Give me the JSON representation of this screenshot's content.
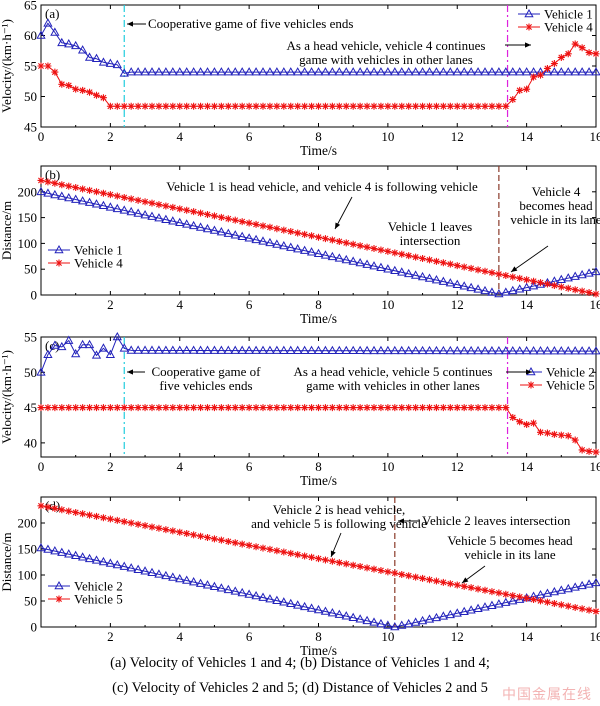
{
  "caption": {
    "line1": "(a) Velocity of Vehicles 1 and  4; (b) Distance of Vehicles 1 and 4;",
    "line2": "(c) Velocity of Vehicles 2 and 5; (d) Distance of Vehicles 2 and 5"
  },
  "watermark": "中国金属在线",
  "colors": {
    "blue": "#2222bb",
    "red": "#ee1111",
    "cyan": "#22ccdd",
    "magenta": "#dd22dd",
    "brown": "#8b3a2a"
  },
  "chart_data": [
    {
      "id": "a",
      "type": "line",
      "panel_label": "(a)",
      "xlabel": "Time/s",
      "ylabel": "Velocity/(km·h⁻¹)",
      "xlim": [
        0,
        16
      ],
      "ylim": [
        45,
        65
      ],
      "xticks": [
        0,
        2,
        4,
        6,
        8,
        10,
        12,
        14,
        16
      ],
      "yticks": [
        45,
        50,
        55,
        60,
        65
      ],
      "legend_position": "top-right",
      "series": [
        {
          "name": "Vehicle 1",
          "color": "#2222bb",
          "marker": "triangle",
          "x": [
            0,
            0.2,
            0.4,
            0.6,
            0.8,
            1.0,
            1.2,
            1.4,
            1.6,
            1.8,
            2.0,
            2.2,
            2.4,
            2.6,
            16
          ],
          "y": [
            60,
            62,
            60.5,
            58.8,
            58.6,
            58.3,
            57.6,
            56.4,
            56.2,
            55.6,
            55.4,
            55.2,
            53.8,
            54,
            54
          ]
        },
        {
          "name": "Vehicle 4",
          "color": "#ee1111",
          "marker": "star",
          "x": [
            0,
            0.2,
            0.4,
            0.6,
            0.8,
            1.0,
            1.2,
            1.4,
            1.6,
            1.8,
            2.0,
            2.2,
            13.4,
            13.6,
            13.8,
            14.0,
            14.2,
            14.4,
            14.6,
            14.8,
            15.0,
            15.2,
            15.4,
            15.6,
            15.8,
            16.0
          ],
          "y": [
            55,
            55,
            54,
            52,
            51.8,
            51.2,
            51,
            50.7,
            50.2,
            49.8,
            48.4,
            48.4,
            48.4,
            49.5,
            51,
            51.2,
            53.2,
            53.5,
            54.6,
            55.4,
            56.4,
            57,
            58.6,
            58,
            57.2,
            57
          ]
        }
      ],
      "vlines": [
        {
          "x": 2.4,
          "color": "#22ccdd",
          "dash": "dashdot"
        },
        {
          "x": 13.45,
          "color": "#dd22dd",
          "dash": "dashdot"
        }
      ],
      "annotations": [
        {
          "id": "coop_end",
          "lines": [
            "Cooperative game of five vehicles ends"
          ]
        },
        {
          "id": "head4",
          "lines": [
            "As a head vehicle, vehicle 4 continues",
            "game with vehicles in other lanes"
          ]
        }
      ]
    },
    {
      "id": "b",
      "type": "line",
      "panel_label": "(b)",
      "xlabel": "Time/s",
      "ylabel": "Distance/m",
      "xlim": [
        0,
        16
      ],
      "ylim": [
        0,
        250
      ],
      "xticks": [
        2,
        4,
        6,
        8,
        10,
        12,
        14,
        16
      ],
      "yticks": [
        0,
        50,
        100,
        150,
        200
      ],
      "legend_position": "middle-left",
      "series": [
        {
          "name": "Vehicle 1",
          "color": "#2222bb",
          "marker": "triangle",
          "x": [
            0,
            13.2,
            16
          ],
          "y": [
            200,
            2,
            45
          ]
        },
        {
          "name": "Vehicle 4",
          "color": "#ee1111",
          "marker": "star",
          "x": [
            0,
            16
          ],
          "y": [
            222,
            2
          ]
        }
      ],
      "vlines": [
        {
          "x": 13.2,
          "color": "#8b3a2a",
          "dash": "dash"
        }
      ],
      "annotations": [
        {
          "id": "head1",
          "lines": [
            "Vehicle 1 is head vehicle, and vehicle 4 is following vehicle"
          ]
        },
        {
          "id": "leave1",
          "lines": [
            "Vehicle 1 leaves",
            "intersection"
          ]
        },
        {
          "id": "becomes4",
          "lines": [
            "Vehicle 4",
            "becomes head",
            "vehicle in its lane"
          ]
        }
      ]
    },
    {
      "id": "c",
      "type": "line",
      "panel_label": "(c)",
      "xlabel": "Time/s",
      "ylabel": "Velocity/(km·h⁻¹)",
      "xlim": [
        0,
        16
      ],
      "ylim": [
        38,
        55
      ],
      "xticks": [
        0,
        2,
        4,
        6,
        8,
        10,
        12,
        14,
        16
      ],
      "yticks": [
        40,
        45,
        50,
        55
      ],
      "legend_position": "middle-right",
      "series": [
        {
          "name": "Vehicle 2",
          "color": "#2222bb",
          "marker": "triangle",
          "x": [
            0,
            0.2,
            0.4,
            0.6,
            0.8,
            1.0,
            1.2,
            1.4,
            1.6,
            1.8,
            2.0,
            2.2,
            2.4,
            2.6,
            16
          ],
          "y": [
            50,
            52.5,
            53.8,
            53.6,
            54.5,
            52.6,
            53.9,
            53.9,
            52.4,
            53.4,
            52.5,
            55,
            53.4,
            53.1,
            53
          ]
        },
        {
          "name": "Vehicle 5",
          "color": "#ee1111",
          "marker": "star",
          "x": [
            0,
            13.4,
            13.6,
            13.8,
            14.0,
            14.2,
            14.4,
            14.6,
            14.8,
            15.0,
            15.2,
            15.4,
            15.6,
            15.8,
            16.0
          ],
          "y": [
            45,
            45,
            43.6,
            43,
            42.6,
            42.8,
            41.5,
            41.4,
            41.2,
            41.1,
            41,
            40.4,
            39,
            38.8,
            38.7
          ]
        }
      ],
      "vlines": [
        {
          "x": 2.4,
          "color": "#22ccdd",
          "dash": "dashdot"
        },
        {
          "x": 13.45,
          "color": "#dd22dd",
          "dash": "dashdot"
        }
      ],
      "annotations": [
        {
          "id": "coop_end2",
          "lines": [
            "Cooperative game of",
            "five vehicles ends"
          ]
        },
        {
          "id": "head5",
          "lines": [
            "As a head vehicle, vehicle 5 continues",
            "game with vehicles in other lanes"
          ]
        }
      ]
    },
    {
      "id": "d",
      "type": "line",
      "panel_label": "(d)",
      "xlabel": "Time/s",
      "ylabel": "Distance/m",
      "xlim": [
        0,
        16
      ],
      "ylim": [
        0,
        250
      ],
      "xticks": [
        2,
        4,
        6,
        8,
        10,
        12,
        14,
        16
      ],
      "yticks": [
        0,
        50,
        100,
        150,
        200
      ],
      "legend_position": "bottom-left",
      "series": [
        {
          "name": "Vehicle 2",
          "color": "#2222bb",
          "marker": "triangle",
          "x": [
            0,
            10.2,
            16
          ],
          "y": [
            152,
            0,
            85
          ]
        },
        {
          "name": "Vehicle 5",
          "color": "#ee1111",
          "marker": "star",
          "x": [
            0,
            16
          ],
          "y": [
            233,
            30
          ]
        }
      ],
      "vlines": [
        {
          "x": 10.2,
          "color": "#8b3a2a",
          "dash": "dash"
        }
      ],
      "annotations": [
        {
          "id": "head2",
          "lines": [
            "Vehicle 2 is head vehicle,",
            "and vehicle 5 is following vehicle"
          ]
        },
        {
          "id": "leave2",
          "lines": [
            "Vehicle 2 leaves intersection"
          ]
        },
        {
          "id": "becomes5",
          "lines": [
            "Vehicle 5 becomes head",
            "vehicle in its lane"
          ]
        }
      ]
    }
  ]
}
